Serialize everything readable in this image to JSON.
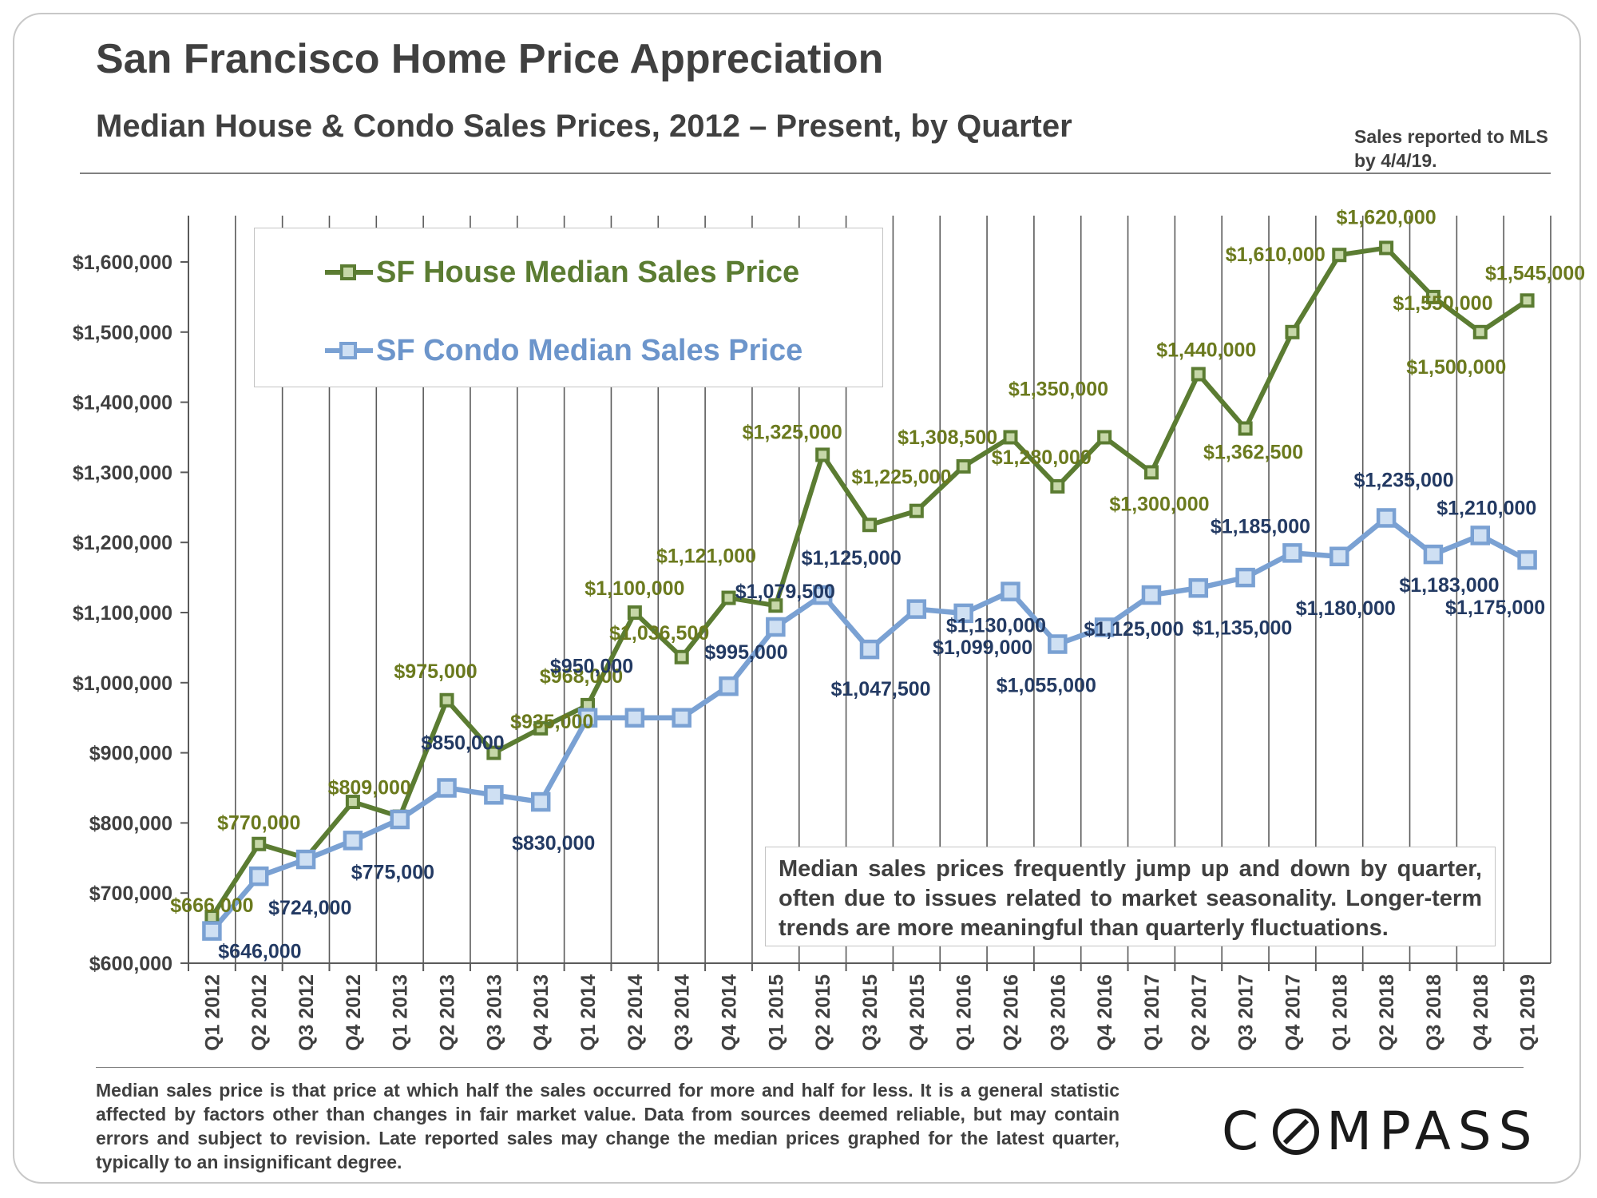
{
  "header": {
    "title": "San Francisco Home Price Appreciation",
    "subtitle": "Median House & Condo Sales Prices, 2012 – Present, by Quarter",
    "report_note": "Sales reported to MLS by 4/4/19."
  },
  "callout": "Median sales prices frequently jump up and down by quarter, often due to issues related to market seasonality. Longer-term trends are more meaningful than quarterly fluctuations.",
  "footer": {
    "disclaimer": "Median sales price is that price at which half the sales occurred for more and half for less. It is a general statistic affected by factors other than changes in fair market value. Data from sources deemed reliable, but may contain errors and subject to revision. Late reported sales may change the median prices graphed for the latest quarter, typically to an insignificant degree.",
    "logo": "COMPASS"
  },
  "colors": {
    "house": "#5b7c32",
    "house_marker_fill": "#c6d7a8",
    "house_label": "#6b7a1e",
    "condo": "#7aa1d3",
    "condo_marker_fill": "#cfe0f3",
    "condo_label": "#233a63",
    "grid": "#5a5a5a",
    "axis_text": "#404040"
  },
  "chart_data": {
    "type": "line",
    "title": "San Francisco Home Price Appreciation",
    "subtitle": "Median House & Condo Sales Prices, 2012 – Present, by Quarter",
    "ylim": [
      600000,
      1600000
    ],
    "yticks": [
      "$600,000",
      "$700,000",
      "$800,000",
      "$900,000",
      "$1,000,000",
      "$1,100,000",
      "$1,200,000",
      "$1,300,000",
      "$1,400,000",
      "$1,500,000",
      "$1,600,000"
    ],
    "grid": "vertical",
    "legend": "top-left",
    "categories": [
      "Q1 2012",
      "Q2 2012",
      "Q3 2012",
      "Q4 2012",
      "Q1 2013",
      "Q2 2013",
      "Q3 2013",
      "Q4 2013",
      "Q1 2014",
      "Q2 2014",
      "Q3 2014",
      "Q4 2014",
      "Q1 2015",
      "Q2 2015",
      "Q3 2015",
      "Q4 2015",
      "Q1 2016",
      "Q2 2016",
      "Q3 2016",
      "Q4 2016",
      "Q1 2017",
      "Q2 2017",
      "Q3 2017",
      "Q4 2017",
      "Q1 2018",
      "Q2 2018",
      "Q3 2018",
      "Q4 2018",
      "Q1 2019"
    ],
    "series": [
      {
        "name": "SF House Median Sales Price",
        "values": [
          666000,
          770000,
          750000,
          830000,
          809000,
          975000,
          900000,
          935000,
          968000,
          1100000,
          1036500,
          1121000,
          1110000,
          1325000,
          1225000,
          1245000,
          1308500,
          1350000,
          1280000,
          1350000,
          1300000,
          1440000,
          1362500,
          1500000,
          1610000,
          1620000,
          1550000,
          1500000,
          1545000
        ],
        "labels": [
          "$666,000",
          "$770,000",
          "",
          "",
          "$809,000",
          "$975,000",
          "",
          "$935,000",
          "$968,000",
          "$1,100,000",
          "$1,036,500",
          "$1,121,000",
          "",
          "$1,325,000",
          "$1,225,000",
          "",
          "$1,308,500",
          "$1,350,000",
          "$1,280,000",
          "",
          "$1,300,000",
          "$1,440,000",
          "$1,362,500",
          "",
          "$1,610,000",
          "$1,620,000",
          "$1,550,000",
          "$1,500,000",
          "$1,545,000"
        ]
      },
      {
        "name": "SF Condo Median Sales Price",
        "values": [
          646000,
          724000,
          748000,
          775000,
          805000,
          850000,
          840000,
          830000,
          950000,
          950000,
          950000,
          995000,
          1079500,
          1125000,
          1047500,
          1105000,
          1099000,
          1130000,
          1055000,
          1079000,
          1125000,
          1135000,
          1150000,
          1185000,
          1180000,
          1235000,
          1183000,
          1210000,
          1175000
        ],
        "labels": [
          "$646,000",
          "$724,000",
          "",
          "$775,000",
          "",
          "$850,000",
          "",
          "$830,000",
          "$950,000",
          "",
          "",
          "$995,000",
          "$1,079,500",
          "$1,125,000",
          "$1,047,500",
          "",
          "$1,099,000",
          "$1,130,000",
          "$1,055,000",
          "",
          "$1,125,000",
          "$1,135,000",
          "",
          "$1,185,000",
          "$1,180,000",
          "$1,235,000",
          "$1,183,000",
          "$1,210,000",
          "$1,175,000"
        ]
      }
    ]
  }
}
